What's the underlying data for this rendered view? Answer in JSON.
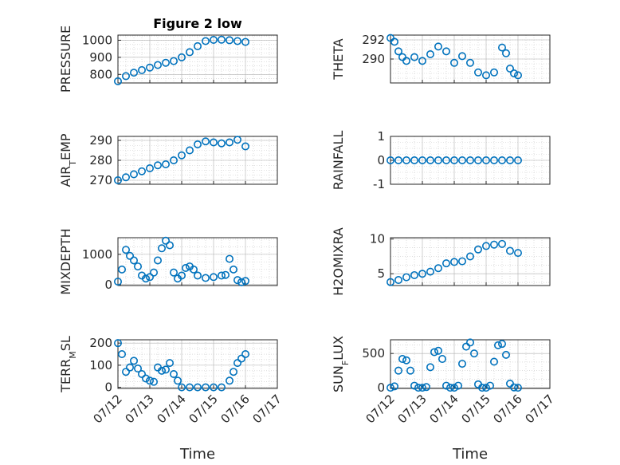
{
  "chart_data": [
    {
      "type": "scatter",
      "title": "Figure 2 low",
      "ylabel": "PRESSURE",
      "ylabel_parts": [
        {
          "t": "PRESSURE",
          "s": ""
        }
      ],
      "ylim": [
        750,
        1030
      ],
      "yticks": [
        800,
        900,
        1000
      ],
      "grid": true,
      "x": [
        "07/12 00:00",
        "07/12 06:00",
        "07/12 12:00",
        "07/12 18:00",
        "07/13 00:00",
        "07/13 06:00",
        "07/13 12:00",
        "07/13 18:00",
        "07/14 00:00",
        "07/14 06:00",
        "07/14 12:00",
        "07/14 18:00",
        "07/15 00:00",
        "07/15 06:00",
        "07/15 12:00",
        "07/15 18:00",
        "07/16 00:00"
      ],
      "y": [
        760,
        790,
        810,
        825,
        840,
        855,
        868,
        878,
        900,
        930,
        965,
        995,
        1002,
        1003,
        1000,
        995,
        990
      ]
    },
    {
      "type": "scatter",
      "ylabel": "THETA",
      "ylabel_parts": [
        {
          "t": "THETA",
          "s": ""
        }
      ],
      "ylim": [
        287.5,
        292.5
      ],
      "yticks": [
        290,
        292
      ],
      "grid": true,
      "x": [
        "07/12 00:00",
        "07/12 03:00",
        "07/12 06:00",
        "07/12 09:00",
        "07/12 12:00",
        "07/12 18:00",
        "07/13 00:00",
        "07/13 06:00",
        "07/13 12:00",
        "07/13 18:00",
        "07/14 00:00",
        "07/14 06:00",
        "07/14 12:00",
        "07/14 18:00",
        "07/15 00:00",
        "07/15 06:00",
        "07/15 12:00",
        "07/15 15:00",
        "07/15 18:00",
        "07/15 21:00",
        "07/16 00:00"
      ],
      "y": [
        292.2,
        291.8,
        290.8,
        290.2,
        289.8,
        290.2,
        289.8,
        290.5,
        291.3,
        290.8,
        289.6,
        290.3,
        289.6,
        288.6,
        288.3,
        288.6,
        291.2,
        290.6,
        289.0,
        288.5,
        288.3
      ]
    },
    {
      "type": "scatter",
      "ylabel": "AIR_TEMP",
      "ylabel_parts": [
        {
          "t": "AIR",
          "s": ""
        },
        {
          "t": "T",
          "s": "sub"
        },
        {
          "t": "EMP",
          "s": ""
        }
      ],
      "ylim": [
        268,
        292
      ],
      "yticks": [
        270,
        280,
        290
      ],
      "grid": true,
      "x": [
        "07/12 00:00",
        "07/12 06:00",
        "07/12 12:00",
        "07/12 18:00",
        "07/13 00:00",
        "07/13 06:00",
        "07/13 12:00",
        "07/13 18:00",
        "07/14 00:00",
        "07/14 06:00",
        "07/14 12:00",
        "07/14 18:00",
        "07/15 00:00",
        "07/15 06:00",
        "07/15 12:00",
        "07/15 18:00",
        "07/16 00:00"
      ],
      "y": [
        270,
        271.5,
        273,
        274.5,
        276,
        277.5,
        278,
        280,
        282.5,
        285,
        288,
        289.5,
        289,
        288.5,
        289,
        290.3,
        287
      ]
    },
    {
      "type": "scatter",
      "ylabel": "RAINFALL",
      "ylabel_parts": [
        {
          "t": "RAINFALL",
          "s": ""
        }
      ],
      "ylim": [
        -1,
        1
      ],
      "yticks": [
        -1,
        0,
        1
      ],
      "grid": true,
      "x": [
        "07/12 00:00",
        "07/12 06:00",
        "07/12 12:00",
        "07/12 18:00",
        "07/13 00:00",
        "07/13 06:00",
        "07/13 12:00",
        "07/13 18:00",
        "07/14 00:00",
        "07/14 06:00",
        "07/14 12:00",
        "07/14 18:00",
        "07/15 00:00",
        "07/15 06:00",
        "07/15 12:00",
        "07/15 18:00",
        "07/16 00:00"
      ],
      "y": [
        0,
        0,
        0,
        0,
        0,
        0,
        0,
        0,
        0,
        0,
        0,
        0,
        0,
        0,
        0,
        0,
        0
      ]
    },
    {
      "type": "scatter",
      "ylabel": "MIXDEPTH",
      "ylabel_parts": [
        {
          "t": "MIXDEPTH",
          "s": ""
        }
      ],
      "ylim": [
        -30,
        1550
      ],
      "yticks": [
        0,
        1000
      ],
      "grid": true,
      "x": [
        "07/12 00:00",
        "07/12 03:00",
        "07/12 06:00",
        "07/12 09:00",
        "07/12 12:00",
        "07/12 15:00",
        "07/12 18:00",
        "07/12 21:00",
        "07/13 00:00",
        "07/13 03:00",
        "07/13 06:00",
        "07/13 09:00",
        "07/13 12:00",
        "07/13 15:00",
        "07/13 18:00",
        "07/13 21:00",
        "07/14 00:00",
        "07/14 03:00",
        "07/14 06:00",
        "07/14 09:00",
        "07/14 12:00",
        "07/14 18:00",
        "07/15 00:00",
        "07/15 06:00",
        "07/15 09:00",
        "07/15 12:00",
        "07/15 15:00",
        "07/15 18:00",
        "07/15 21:00",
        "07/16 00:00"
      ],
      "y": [
        100,
        500,
        1150,
        950,
        800,
        600,
        300,
        200,
        250,
        400,
        800,
        1200,
        1450,
        1300,
        400,
        200,
        300,
        550,
        600,
        500,
        300,
        220,
        250,
        300,
        320,
        850,
        500,
        150,
        80,
        120
      ]
    },
    {
      "type": "scatter",
      "ylabel": "H2OMIXRA",
      "ylabel_parts": [
        {
          "t": "H2OMIXRA",
          "s": ""
        }
      ],
      "ylim": [
        3.3,
        10.2
      ],
      "yticks": [
        5,
        10
      ],
      "grid": true,
      "x": [
        "07/12 00:00",
        "07/12 06:00",
        "07/12 12:00",
        "07/12 18:00",
        "07/13 00:00",
        "07/13 06:00",
        "07/13 12:00",
        "07/13 18:00",
        "07/14 00:00",
        "07/14 06:00",
        "07/14 12:00",
        "07/14 18:00",
        "07/15 00:00",
        "07/15 06:00",
        "07/15 12:00",
        "07/15 18:00",
        "07/16 00:00"
      ],
      "y": [
        3.8,
        4.1,
        4.5,
        4.8,
        5.0,
        5.3,
        5.8,
        6.5,
        6.7,
        6.8,
        7.5,
        8.5,
        9.0,
        9.2,
        9.3,
        8.3,
        8.0
      ]
    },
    {
      "type": "scatter",
      "ylabel": "TERR_MSL",
      "ylabel_parts": [
        {
          "t": "TERR",
          "s": ""
        },
        {
          "t": "M",
          "s": "sub"
        },
        {
          "t": "SL",
          "s": ""
        }
      ],
      "ylim": [
        -5,
        215
      ],
      "yticks": [
        0,
        100,
        200
      ],
      "xticks": [
        "07/12",
        "07/13",
        "07/14",
        "07/15",
        "07/16",
        "07/17"
      ],
      "xlabel": "Time",
      "grid": true,
      "x": [
        "07/12 00:00",
        "07/12 03:00",
        "07/12 06:00",
        "07/12 09:00",
        "07/12 12:00",
        "07/12 15:00",
        "07/12 18:00",
        "07/12 21:00",
        "07/13 00:00",
        "07/13 03:00",
        "07/13 06:00",
        "07/13 09:00",
        "07/13 12:00",
        "07/13 15:00",
        "07/13 18:00",
        "07/13 21:00",
        "07/14 00:00",
        "07/14 06:00",
        "07/14 12:00",
        "07/14 18:00",
        "07/15 00:00",
        "07/15 06:00",
        "07/15 12:00",
        "07/15 15:00",
        "07/15 18:00",
        "07/15 21:00",
        "07/16 00:00"
      ],
      "y": [
        200,
        150,
        70,
        90,
        120,
        85,
        60,
        40,
        30,
        25,
        90,
        75,
        80,
        110,
        60,
        30,
        0,
        0,
        0,
        0,
        0,
        0,
        30,
        70,
        110,
        130,
        150
      ]
    },
    {
      "type": "scatter",
      "ylabel": "SUN_FLUX",
      "ylabel_parts": [
        {
          "t": "SUN",
          "s": ""
        },
        {
          "t": "F",
          "s": "sub"
        },
        {
          "t": "LUX",
          "s": ""
        }
      ],
      "ylim": [
        -10,
        700
      ],
      "yticks": [
        0,
        500
      ],
      "xticks": [
        "07/12",
        "07/13",
        "07/14",
        "07/15",
        "07/16",
        "07/17"
      ],
      "xlabel": "Time",
      "grid": true,
      "x": [
        "07/12 00:00",
        "07/12 03:00",
        "07/12 06:00",
        "07/12 09:00",
        "07/12 12:00",
        "07/12 15:00",
        "07/12 18:00",
        "07/12 21:00",
        "07/13 00:00",
        "07/13 03:00",
        "07/13 06:00",
        "07/13 09:00",
        "07/13 12:00",
        "07/13 15:00",
        "07/13 18:00",
        "07/13 21:00",
        "07/14 00:00",
        "07/14 03:00",
        "07/14 06:00",
        "07/14 09:00",
        "07/14 12:00",
        "07/14 15:00",
        "07/14 18:00",
        "07/14 21:00",
        "07/15 00:00",
        "07/15 03:00",
        "07/15 06:00",
        "07/15 09:00",
        "07/15 12:00",
        "07/15 15:00",
        "07/15 18:00",
        "07/15 21:00",
        "07/16 00:00"
      ],
      "y": [
        0,
        20,
        250,
        420,
        400,
        250,
        30,
        0,
        0,
        10,
        300,
        520,
        540,
        420,
        30,
        0,
        0,
        30,
        350,
        600,
        660,
        500,
        50,
        0,
        0,
        30,
        380,
        620,
        640,
        480,
        60,
        5,
        0
      ]
    }
  ],
  "colors": {
    "marker": "#0072BD",
    "axis": "#262626"
  }
}
